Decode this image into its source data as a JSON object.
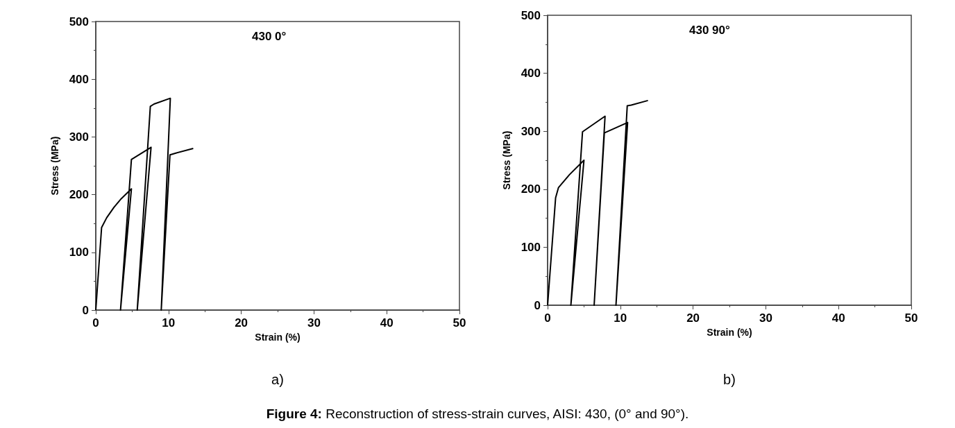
{
  "chart_data": [
    {
      "type": "line",
      "title": "430 0°",
      "xlabel": "Strain (%)",
      "ylabel": "Stress (MPa)",
      "annotations": [
        "a)"
      ],
      "xlim": [
        0,
        50
      ],
      "xticks": [
        0,
        10,
        20,
        30,
        40,
        50
      ],
      "ylim": [
        0,
        500
      ],
      "yticks": [
        0,
        100,
        200,
        300,
        400,
        500
      ],
      "grid": false,
      "marker": "none",
      "line_style": "solid",
      "series": [
        {
          "color": "#000000",
          "x": [
            0,
            0.8,
            1.5,
            2.5,
            3.5,
            4.9,
            3.4,
            4.9,
            7.6,
            5.7,
            7.5,
            8,
            10.25,
            9,
            10.2,
            11,
            13.4
          ],
          "values": [
            0,
            143,
            160,
            178,
            193,
            210,
            0,
            261,
            282,
            0,
            353,
            357,
            367,
            0,
            269,
            272,
            280
          ]
        }
      ]
    },
    {
      "type": "line",
      "title": "430 90°",
      "xlabel": "Strain (%)",
      "ylabel": "Stress (MPa)",
      "annotations": [
        "b)",
        "Figure 4: Reconstruction of stress-strain curves, AISI: 430, (0° and 90°)."
      ],
      "xlim": [
        0,
        50
      ],
      "xticks": [
        0,
        10,
        20,
        30,
        40,
        50
      ],
      "ylim": [
        0,
        500
      ],
      "yticks": [
        0,
        100,
        200,
        300,
        400,
        500
      ],
      "grid": false,
      "marker": "none",
      "line_style": "solid",
      "series": [
        {
          "color": "#000000",
          "x": [
            0,
            1.1,
            1.5,
            3,
            5,
            3.2,
            4.8,
            7.9,
            6.4,
            7.8,
            11,
            9.4,
            10.95,
            11.5,
            13.8
          ],
          "values": [
            0,
            185,
            203,
            225,
            250,
            0,
            299,
            326,
            0,
            297,
            315,
            0,
            344,
            345,
            353
          ]
        }
      ]
    }
  ]
}
